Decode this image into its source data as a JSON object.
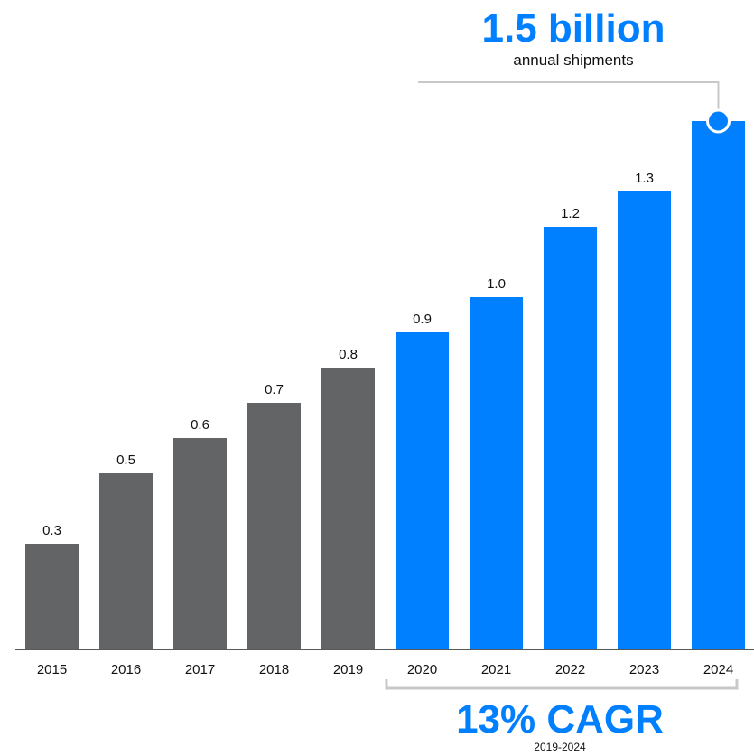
{
  "headline": {
    "value_text": "1.5 billion",
    "caption": "annual shipments"
  },
  "cagr_callout": {
    "value_text": "13% CAGR",
    "period": "2019-2024"
  },
  "colors": {
    "historical": "#636466",
    "forecast": "#0080FF",
    "bracket": "#C8C8C8",
    "axis": "#222222"
  },
  "chart_data": {
    "type": "bar",
    "categories": [
      "2015",
      "2016",
      "2017",
      "2018",
      "2019",
      "2020",
      "2021",
      "2022",
      "2023",
      "2024"
    ],
    "values": [
      0.3,
      0.5,
      0.6,
      0.7,
      0.8,
      0.9,
      1.0,
      1.2,
      1.3,
      1.5
    ],
    "data_labels": [
      "0.3",
      "0.5",
      "0.6",
      "0.7",
      "0.8",
      "0.9",
      "1.0",
      "1.2",
      "1.3",
      ""
    ],
    "series_groups": [
      {
        "years": [
          "2015",
          "2016",
          "2017",
          "2018",
          "2019"
        ],
        "color": "#636466"
      },
      {
        "years": [
          "2020",
          "2021",
          "2022",
          "2023",
          "2024"
        ],
        "color": "#0080FF"
      }
    ],
    "ylim": [
      0,
      1.5
    ],
    "grid": false,
    "legend": "none",
    "title": "",
    "xlabel": "",
    "ylabel": ""
  }
}
